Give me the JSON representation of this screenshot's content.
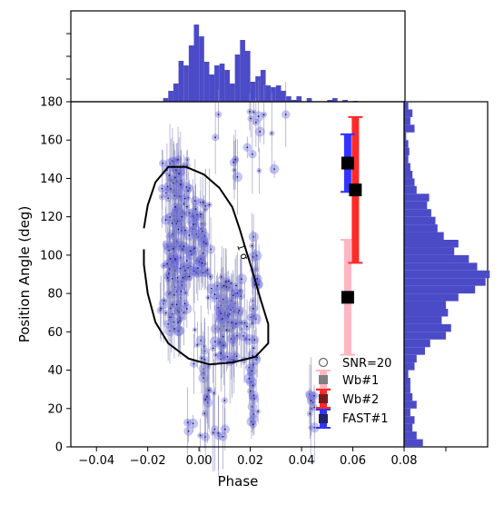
{
  "chart_data": {
    "type": "scatter",
    "xlabel": "Phase",
    "ylabel": "Position Angle (deg)",
    "xlim": [
      -0.05,
      0.08
    ],
    "ylim": [
      0,
      180
    ],
    "xticks": [
      -0.04,
      -0.02,
      0.0,
      0.02,
      0.04,
      0.06,
      0.08
    ],
    "xtick_labels": [
      "−0.04",
      "−0.02",
      "0.00",
      "0.02",
      "0.04",
      "0.06",
      "0.08"
    ],
    "yticks": [
      0,
      20,
      40,
      60,
      80,
      100,
      120,
      140,
      160,
      180
    ],
    "ytick_labels": [
      "0",
      "20",
      "40",
      "60",
      "80",
      "100",
      "120",
      "140",
      "160",
      "180"
    ],
    "contour_label": "1 σ",
    "legend": {
      "placement": "lower-right",
      "items": [
        {
          "label": "SNR=20",
          "marker": "circle"
        },
        {
          "label": "Wb#1",
          "color": "#ffb6c1"
        },
        {
          "label": "Wb#2",
          "color": "#ff2a2a"
        },
        {
          "label": "FAST#1",
          "color": "#3333ff"
        }
      ]
    },
    "error_bars": [
      {
        "name": "Wb#1",
        "x": 0.058,
        "y": 78,
        "ylow": 48,
        "yhigh": 108,
        "color": "#ffb6c1"
      },
      {
        "name": "Wb#2",
        "x": 0.061,
        "y": 134,
        "ylow": 96,
        "yhigh": 172,
        "color": "#ff2a2a"
      },
      {
        "name": "FAST#1",
        "x": 0.058,
        "y": 148,
        "ylow": 133,
        "yhigh": 163,
        "color": "#3333ff"
      }
    ],
    "contour_1sigma": [
      [
        -0.0215,
        114
      ],
      [
        -0.02,
        126
      ],
      [
        -0.017,
        138
      ],
      [
        -0.012,
        146
      ],
      [
        -0.005,
        146
      ],
      [
        0.002,
        142
      ],
      [
        0.008,
        135
      ],
      [
        0.013,
        125
      ],
      [
        0.016,
        113
      ],
      [
        0.018,
        104
      ],
      [
        0.021,
        91
      ],
      [
        0.024,
        77
      ],
      [
        0.027,
        64
      ],
      [
        0.027,
        54
      ],
      [
        0.022,
        47
      ],
      [
        0.013,
        44
      ],
      [
        0.004,
        43
      ],
      [
        -0.004,
        46
      ],
      [
        -0.012,
        54
      ],
      [
        -0.017,
        65
      ],
      [
        -0.02,
        80
      ],
      [
        -0.0215,
        95
      ],
      [
        -0.0215,
        103
      ]
    ],
    "scatter": {
      "clusters": [
        {
          "x_center": -0.009,
          "x_spread": 0.008,
          "y_min": 60,
          "y_max": 150,
          "count": 170
        },
        {
          "x_center": 0.0,
          "x_spread": 0.006,
          "y_min": 90,
          "y_max": 130,
          "count": 60
        },
        {
          "x_center": 0.012,
          "x_spread": 0.01,
          "y_min": 45,
          "y_max": 90,
          "count": 90
        },
        {
          "x_center": 0.021,
          "x_spread": 0.003,
          "y_min": 10,
          "y_max": 110,
          "count": 40
        },
        {
          "x_center": 0.004,
          "x_spread": 0.012,
          "y_min": 5,
          "y_max": 60,
          "count": 35
        },
        {
          "x_center": 0.02,
          "x_spread": 0.02,
          "y_min": 140,
          "y_max": 175,
          "count": 20
        },
        {
          "x_center": 0.044,
          "x_spread": 0.002,
          "y_min": 10,
          "y_max": 30,
          "count": 10
        }
      ],
      "color": "#6464e6"
    },
    "hist_phase": {
      "bin_width": 0.002,
      "x_start": -0.014,
      "counts": [
        4,
        12,
        20,
        45,
        40,
        62,
        85,
        72,
        44,
        30,
        40,
        42,
        35,
        20,
        52,
        68,
        56,
        22,
        28,
        35,
        18,
        16,
        18,
        12,
        6,
        2,
        6,
        0,
        4,
        0,
        0,
        0,
        2,
        4,
        0,
        2,
        0,
        1
      ],
      "color": "#4b4bc8"
    },
    "hist_angle": {
      "bin_width": 4,
      "y_start": 0,
      "counts": [
        18,
        12,
        8,
        10,
        6,
        12,
        8,
        6,
        6,
        4,
        10,
        12,
        20,
        25,
        40,
        45,
        36,
        42,
        40,
        52,
        68,
        78,
        82,
        70,
        62,
        48,
        52,
        38,
        32,
        30,
        26,
        22,
        24,
        12,
        10,
        8,
        6,
        4,
        5,
        4,
        2,
        10,
        6,
        8,
        4
      ],
      "color": "#4b4bc8"
    }
  }
}
